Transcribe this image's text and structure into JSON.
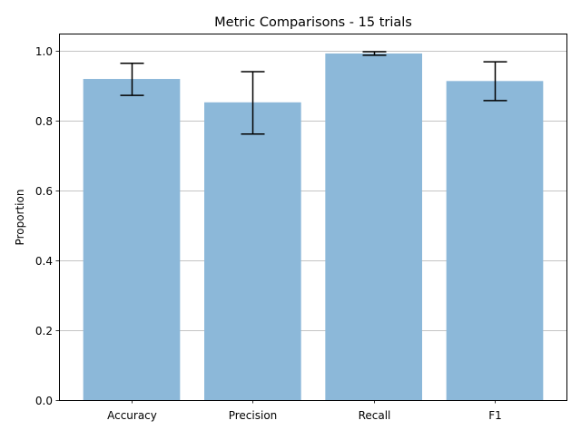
{
  "chart_data": {
    "type": "bar",
    "title": "Metric Comparisons - 15 trials",
    "xlabel": "",
    "ylabel": "Proportion",
    "categories": [
      "Accuracy",
      "Precision",
      "Recall",
      "F1"
    ],
    "values": [
      0.92,
      0.853,
      0.993,
      0.914
    ],
    "error_low": [
      0.873,
      0.762,
      0.988,
      0.858
    ],
    "error_high": [
      0.965,
      0.941,
      0.998,
      0.969
    ],
    "ylim": [
      0.0,
      1.05
    ],
    "yticks": [
      0.0,
      0.2,
      0.4,
      0.6,
      0.8,
      1.0
    ],
    "ytick_labels": [
      "0.0",
      "0.2",
      "0.4",
      "0.6",
      "0.8",
      "1.0"
    ],
    "grid": "y",
    "colors": {
      "bar": "#8cb8d9",
      "grid": "#b0b0b0",
      "error_bar": "#000000",
      "axis": "#000000"
    }
  }
}
